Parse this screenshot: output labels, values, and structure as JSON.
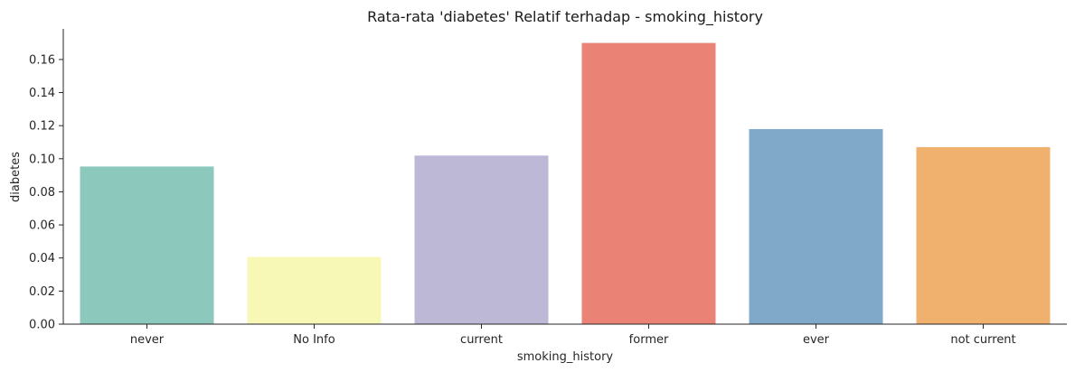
{
  "chart_data": {
    "type": "bar",
    "title": "Rata-rata 'diabetes' Relatif terhadap - smoking_history",
    "xlabel": "smoking_history",
    "ylabel": "diabetes",
    "categories": [
      "never",
      "No Info",
      "current",
      "former",
      "ever",
      "not current"
    ],
    "values": [
      0.0953,
      0.0406,
      0.1019,
      0.17,
      0.1179,
      0.107
    ],
    "colors": [
      "#8dc8bd",
      "#f7f7b6",
      "#bdb8d6",
      "#ea8376",
      "#80a9c9",
      "#f0b06e"
    ],
    "ylim": [
      0,
      0.1785
    ],
    "yticks": [
      "0.00",
      "0.02",
      "0.04",
      "0.06",
      "0.08",
      "0.10",
      "0.12",
      "0.14",
      "0.16"
    ],
    "grid": false,
    "legend": "none"
  }
}
